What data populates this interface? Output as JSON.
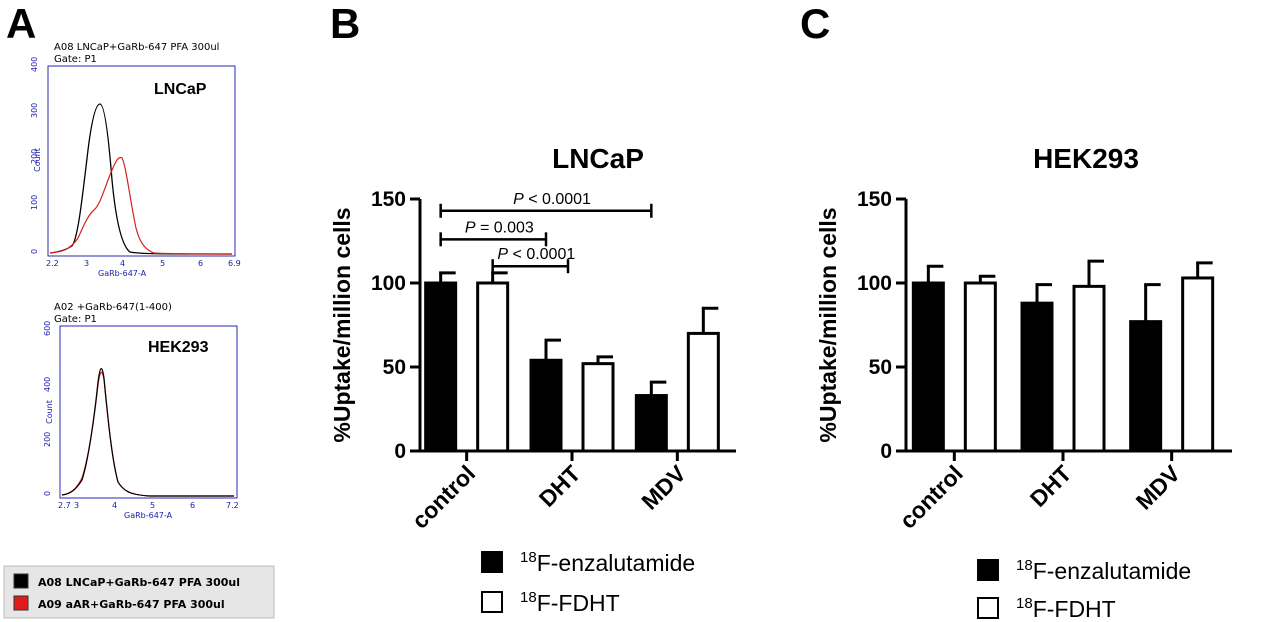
{
  "panels": {
    "a": {
      "letter": "A"
    },
    "b": {
      "letter": "B"
    },
    "c": {
      "letter": "C"
    }
  },
  "flow": {
    "top": {
      "header1": "A08 LNCaP+GaRb-647 PFA 300ul",
      "header2": "Gate: P1",
      "label": "LNCaP",
      "ylabel": "Count",
      "xlabel": "GaRb-647-A",
      "yticks": [
        "0",
        "100",
        "200",
        "300",
        "400"
      ],
      "xticks": [
        "2.2",
        "3",
        "4",
        "5",
        "6",
        "6.9"
      ]
    },
    "bottom": {
      "header1": "A02 +GaRb-647(1-400)",
      "header2": "Gate: P1",
      "label": "HEK293",
      "ylabel": "Count",
      "xlabel": "GaRb-647-A",
      "yticks": [
        "0",
        "200",
        "400",
        "600"
      ],
      "xticks": [
        "2.7",
        "3",
        "4",
        "5",
        "6",
        "7.2"
      ]
    },
    "legend": [
      {
        "label": "A08 LNCaP+GaRb-647 PFA 300ul",
        "color": "#000000"
      },
      {
        "label": "A09 aAR+GaRb-647 PFA 300ul",
        "color": "#e01b1b"
      }
    ]
  },
  "chart_data": [
    {
      "type": "bar",
      "title": "LNCaP",
      "ylabel": "%Uptake/million cells",
      "xlabel": "",
      "ylim": [
        0,
        150
      ],
      "yticks": [
        0,
        50,
        100,
        150
      ],
      "categories": [
        "control",
        "DHT",
        "MDV"
      ],
      "series": [
        {
          "name": "18F-enzalutamide",
          "values": [
            100,
            54,
            33
          ],
          "errors": [
            6,
            12,
            8
          ],
          "fill": "#000000"
        },
        {
          "name": "18F-FDHT",
          "values": [
            100,
            52,
            70
          ],
          "errors": [
            6,
            4,
            15
          ],
          "fill": "#ffffff"
        }
      ],
      "annotations": [
        {
          "text": "P < 0.0001",
          "from": "control",
          "to": "MDV",
          "y": 143
        },
        {
          "text": "P = 0.003",
          "from": "control",
          "to": "DHT",
          "y": 126
        },
        {
          "text": "P < 0.0001",
          "from": "control",
          "to": "DHT",
          "y": 110
        }
      ]
    },
    {
      "type": "bar",
      "title": "HEK293",
      "ylabel": "%Uptake/million cells",
      "xlabel": "",
      "ylim": [
        0,
        150
      ],
      "yticks": [
        0,
        50,
        100,
        150
      ],
      "categories": [
        "control",
        "DHT",
        "MDV"
      ],
      "series": [
        {
          "name": "18F-enzalutamide",
          "values": [
            100,
            88,
            77
          ],
          "errors": [
            10,
            11,
            22
          ],
          "fill": "#000000"
        },
        {
          "name": "18F-FDHT",
          "values": [
            100,
            98,
            103
          ],
          "errors": [
            4,
            15,
            9
          ],
          "fill": "#ffffff"
        }
      ]
    }
  ],
  "legend": {
    "sup": "18",
    "items": [
      {
        "text": "F-enzalutamide",
        "fill": "#000000"
      },
      {
        "text": "F-FDHT",
        "fill": "#ffffff"
      }
    ]
  }
}
